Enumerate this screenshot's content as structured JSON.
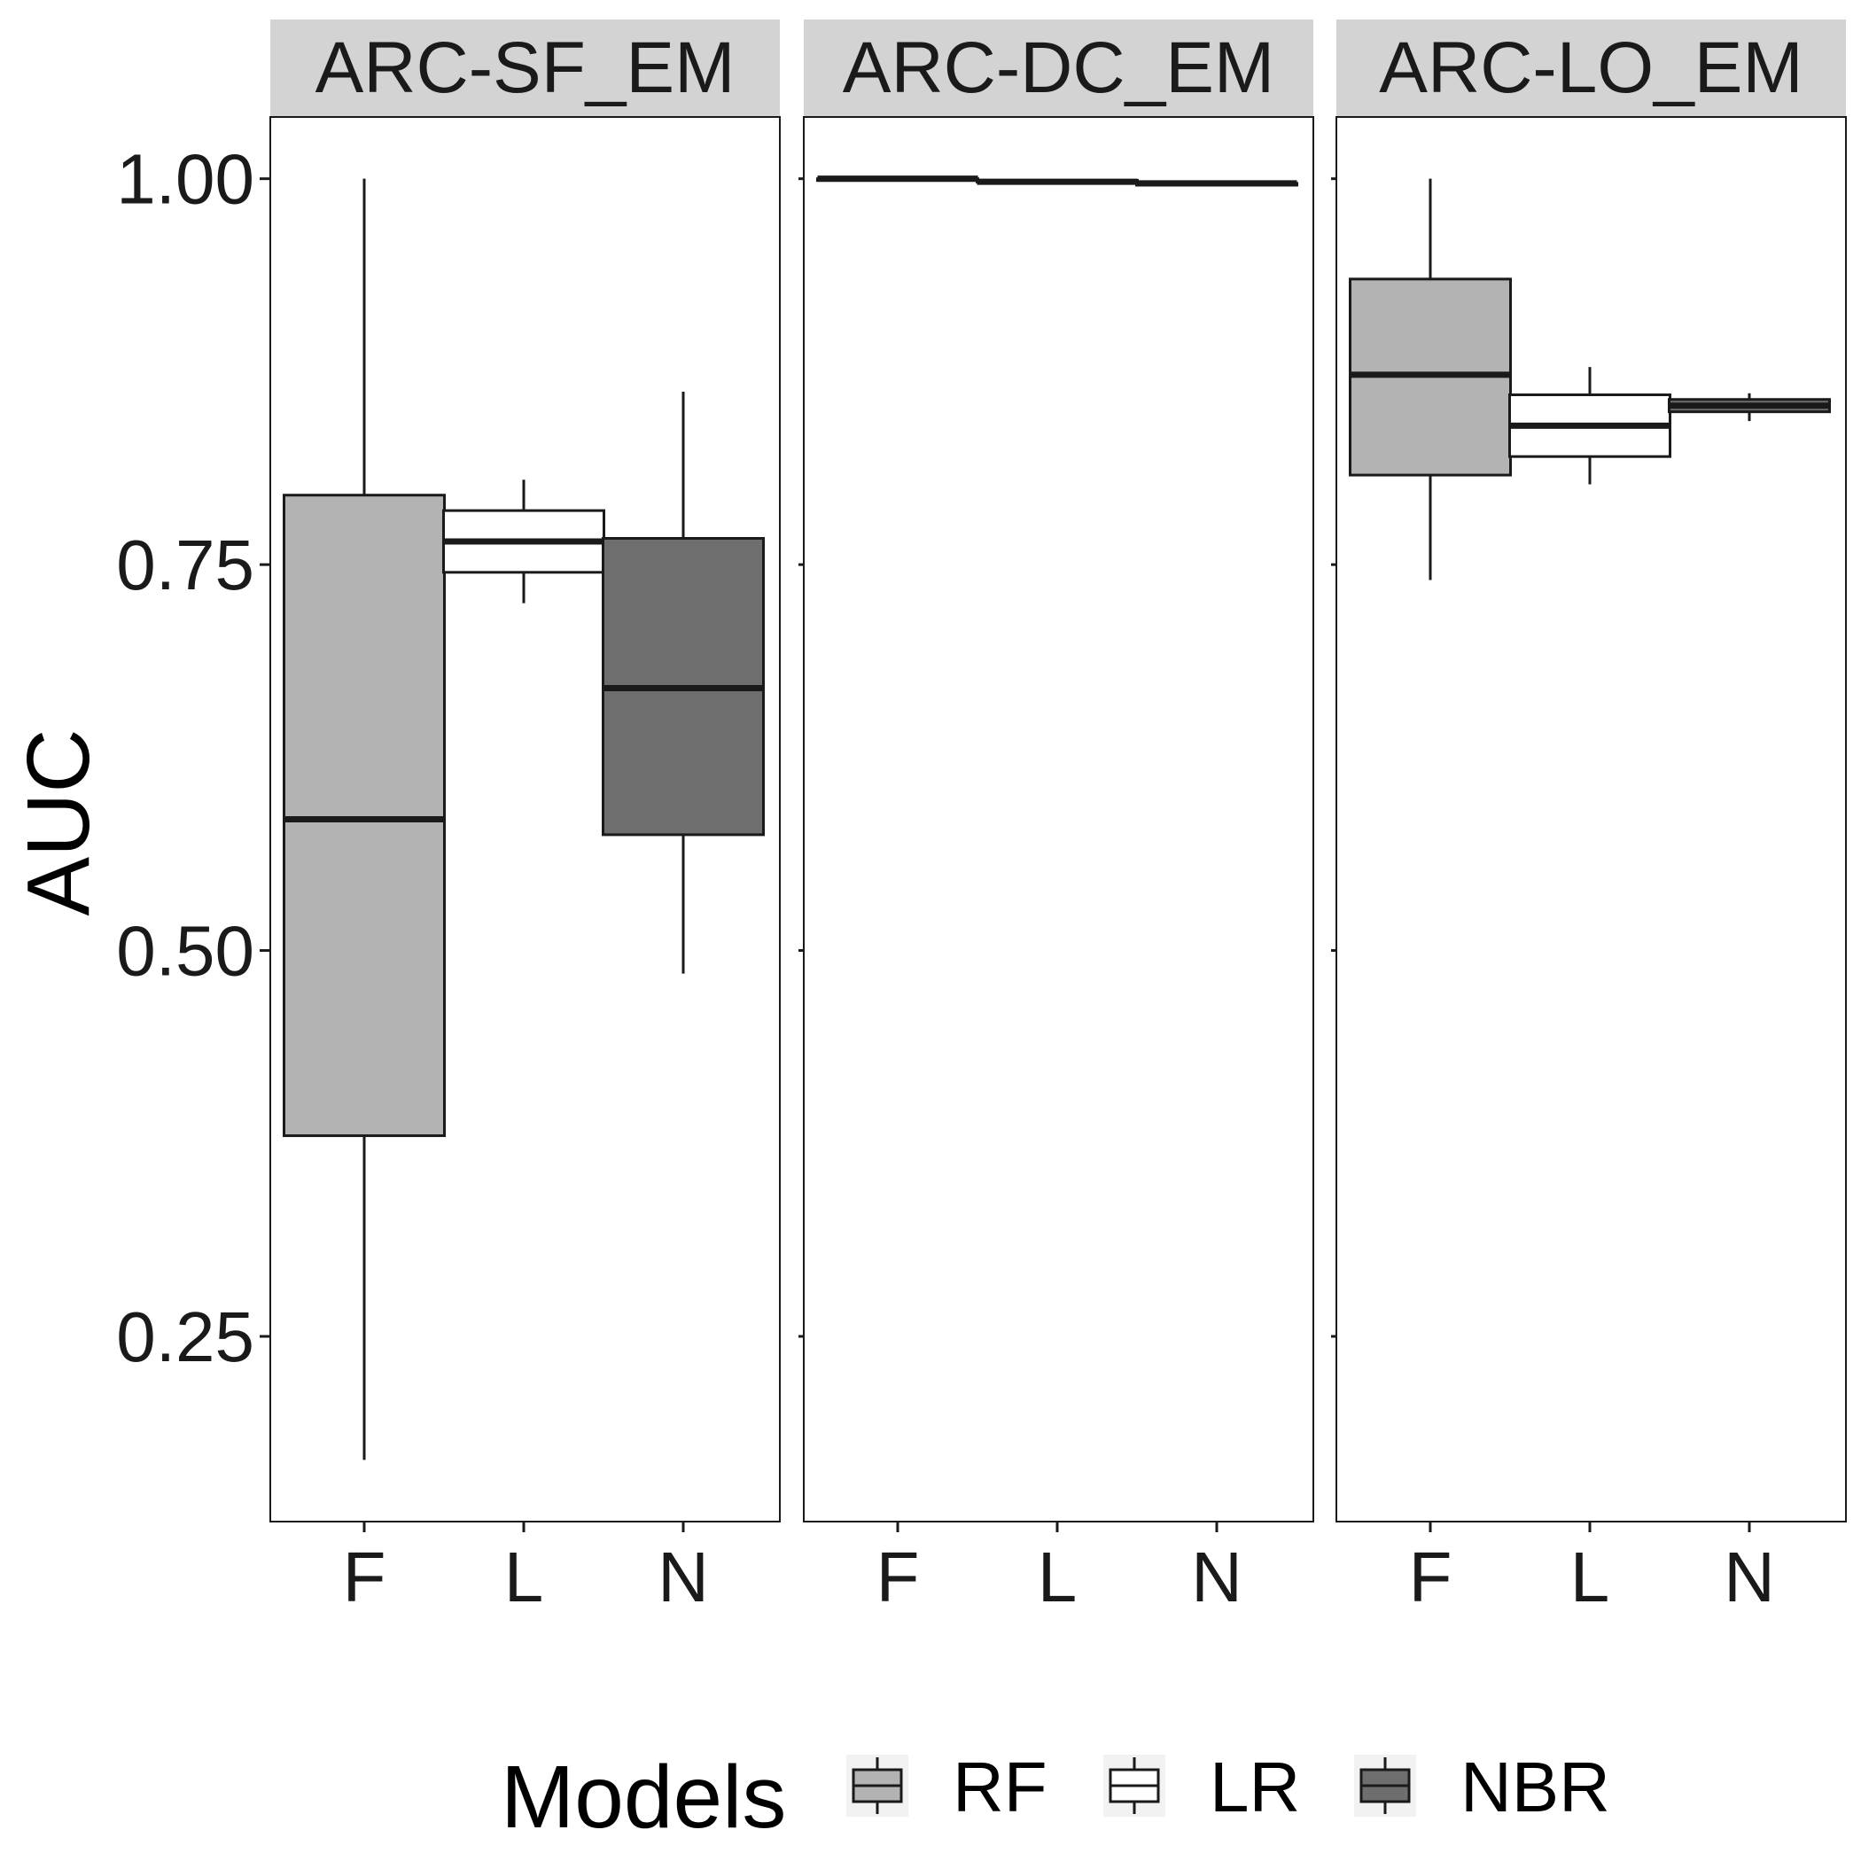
{
  "chart_data": {
    "type": "boxplot",
    "ylabel": "AUC",
    "xlabel": "",
    "ylim": [
      0.13,
      1.04
    ],
    "yticks": [
      0.25,
      0.5,
      0.75,
      1.0
    ],
    "ytick_labels": [
      "0.25",
      "0.50",
      "0.75",
      "1.00"
    ],
    "categories": [
      "F",
      "L",
      "N"
    ],
    "grid": false,
    "legend": {
      "title": "Models",
      "position": "bottom",
      "entries": [
        {
          "name": "RF",
          "color": "#b3b3b3"
        },
        {
          "name": "LR",
          "color": "#ffffff"
        },
        {
          "name": "NBR",
          "color": "#6e6e6e"
        }
      ]
    },
    "panels": [
      {
        "title": "ARC-SF_EM",
        "boxes": [
          {
            "category": "F",
            "model": "RF",
            "min": 0.17,
            "q1": 0.38,
            "median": 0.585,
            "q3": 0.795,
            "max": 1.0
          },
          {
            "category": "L",
            "model": "LR",
            "min": 0.725,
            "q1": 0.745,
            "median": 0.765,
            "q3": 0.785,
            "max": 0.805
          },
          {
            "category": "N",
            "model": "NBR",
            "min": 0.485,
            "q1": 0.575,
            "median": 0.67,
            "q3": 0.767,
            "max": 0.862
          }
        ]
      },
      {
        "title": "ARC-DC_EM",
        "boxes": [
          {
            "category": "F",
            "model": "RF",
            "min": 1.0,
            "q1": 1.0,
            "median": 1.0,
            "q3": 1.0,
            "max": 1.0
          },
          {
            "category": "L",
            "model": "LR",
            "min": 0.998,
            "q1": 0.998,
            "median": 0.998,
            "q3": 0.999,
            "max": 0.999
          },
          {
            "category": "N",
            "model": "NBR",
            "min": 0.996,
            "q1": 0.996,
            "median": 0.997,
            "q3": 0.997,
            "max": 0.998
          }
        ]
      },
      {
        "title": "ARC-LO_EM",
        "boxes": [
          {
            "category": "F",
            "model": "RF",
            "min": 0.74,
            "q1": 0.808,
            "median": 0.873,
            "q3": 0.935,
            "max": 1.0
          },
          {
            "category": "L",
            "model": "LR",
            "min": 0.802,
            "q1": 0.82,
            "median": 0.84,
            "q3": 0.86,
            "max": 0.878
          },
          {
            "category": "N",
            "model": "NBR",
            "min": 0.843,
            "q1": 0.849,
            "median": 0.853,
            "q3": 0.857,
            "max": 0.861
          }
        ]
      }
    ]
  }
}
